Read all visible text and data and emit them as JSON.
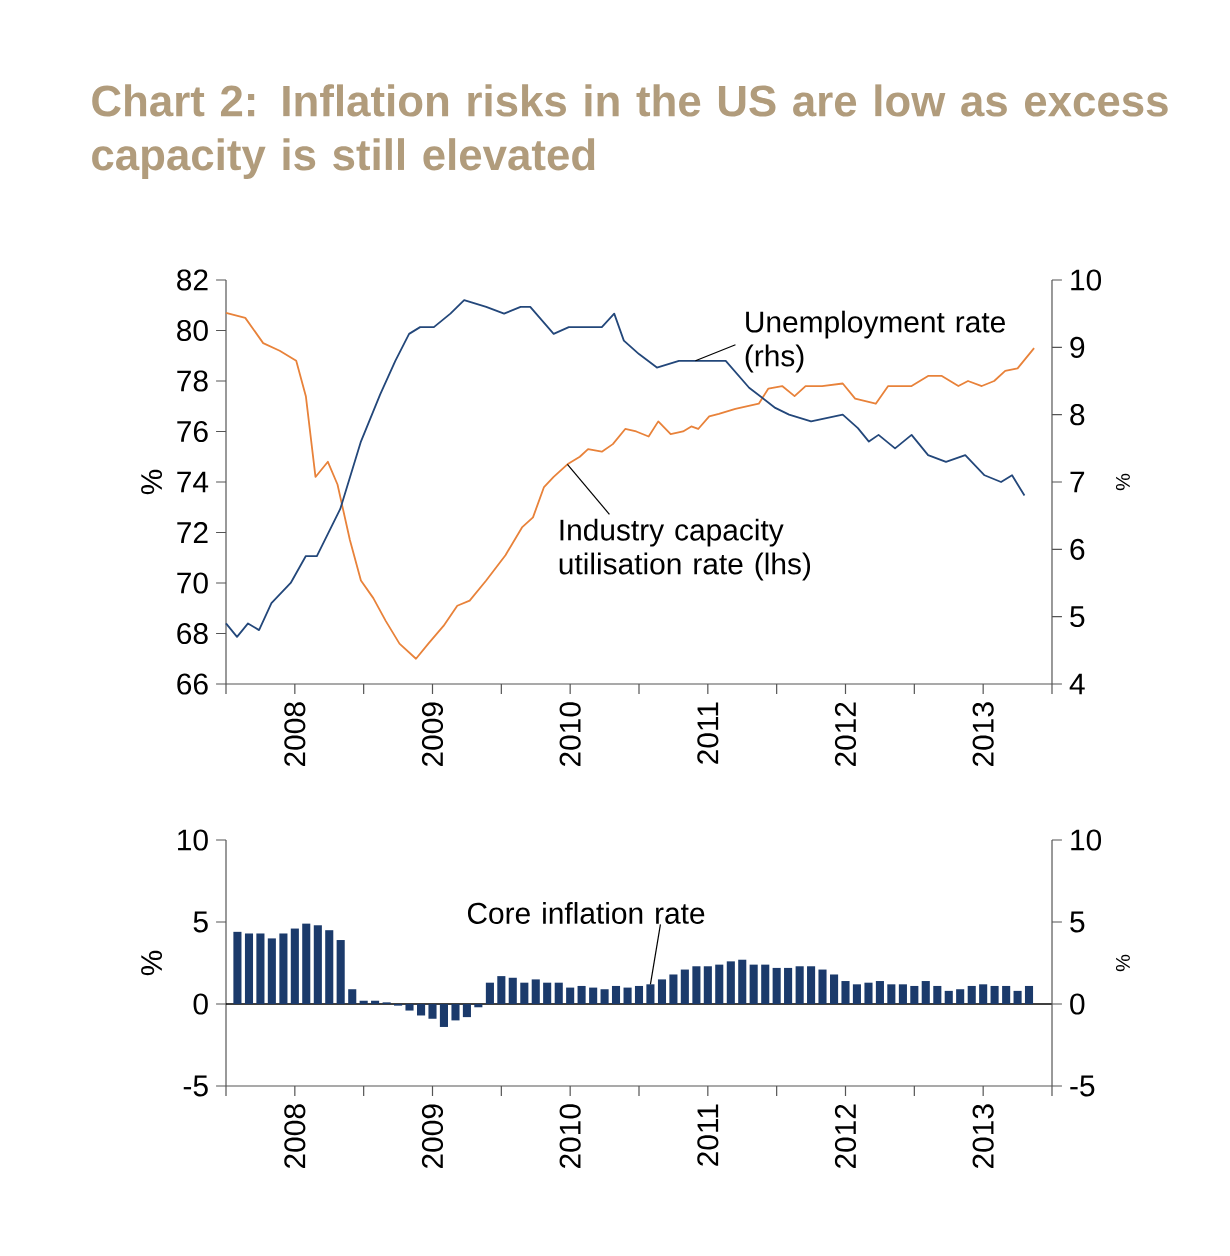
{
  "chart_data": [
    {
      "type": "line",
      "title": "Chart 2: Inflation risks in the US are low as excess capacity is still elevated",
      "ylabel": "%",
      "y2label": "%",
      "xlim": [
        2008,
        2014
      ],
      "xticks": [
        {
          "value": 2008,
          "label": null
        },
        {
          "value": 2008.5,
          "label": "2008"
        },
        {
          "value": 2009,
          "label": null
        },
        {
          "value": 2009.5,
          "label": "2009"
        },
        {
          "value": 2010,
          "label": null
        },
        {
          "value": 2010.5,
          "label": "2010"
        },
        {
          "value": 2011,
          "label": null
        },
        {
          "value": 2011.5,
          "label": "2011"
        },
        {
          "value": 2012,
          "label": null
        },
        {
          "value": 2012.5,
          "label": "2012"
        },
        {
          "value": 2013,
          "label": null
        },
        {
          "value": 2013.5,
          "label": "2013"
        },
        {
          "value": 2014,
          "label": null
        }
      ],
      "ylim": [
        66,
        82
      ],
      "yticks": [
        66,
        68,
        70,
        72,
        74,
        76,
        78,
        80,
        82
      ],
      "y2lim": [
        4,
        10
      ],
      "y2ticks": [
        4,
        5,
        6,
        7,
        8,
        9,
        10
      ],
      "series": [
        {
          "name": "Industry capacity utilisation rate (lhs)",
          "color": "#e8823a",
          "x": [
            2008.0,
            2008.14,
            2008.27,
            2008.39,
            2008.51,
            2008.58,
            2008.65,
            2008.74,
            2008.81,
            2008.9,
            2008.98,
            2009.07,
            2009.16,
            2009.26,
            2009.38,
            2009.47,
            2009.58,
            2009.68,
            2009.77,
            2009.89,
            2010.03,
            2010.15,
            2010.23,
            2010.31,
            2010.38,
            2010.48,
            2010.57,
            2010.63,
            2010.73,
            2010.81,
            2010.9,
            2010.98,
            2011.07,
            2011.14,
            2011.23,
            2011.32,
            2011.38,
            2011.43,
            2011.51,
            2011.58,
            2011.7,
            2011.87,
            2011.94,
            2012.04,
            2012.13,
            2012.21,
            2012.33,
            2012.48,
            2012.57,
            2012.72,
            2012.81,
            2012.98,
            2013.1,
            2013.2,
            2013.32,
            2013.39,
            2013.49,
            2013.58,
            2013.66,
            2013.75,
            2013.87
          ],
          "values": [
            80.7,
            80.5,
            79.5,
            79.2,
            78.8,
            77.4,
            74.2,
            74.8,
            73.9,
            71.7,
            70.1,
            69.4,
            68.5,
            67.6,
            67.0,
            67.6,
            68.3,
            69.1,
            69.3,
            70.1,
            71.1,
            72.2,
            72.6,
            73.8,
            74.2,
            74.7,
            75.0,
            75.3,
            75.2,
            75.5,
            76.1,
            76.0,
            75.8,
            76.4,
            75.9,
            76.0,
            76.2,
            76.1,
            76.6,
            76.7,
            76.9,
            77.1,
            77.7,
            77.8,
            77.4,
            77.8,
            77.8,
            77.9,
            77.3,
            77.1,
            77.8,
            77.8,
            78.2,
            78.2,
            77.8,
            78.0,
            77.8,
            78.0,
            78.4,
            78.5,
            79.3
          ]
        },
        {
          "name": "Unemployment rate (rhs)",
          "color": "#23477a",
          "axis": "y2",
          "x": [
            2008.0,
            2008.08,
            2008.16,
            2008.24,
            2008.33,
            2008.47,
            2008.58,
            2008.66,
            2008.83,
            2008.98,
            2009.12,
            2009.23,
            2009.33,
            2009.41,
            2009.51,
            2009.63,
            2009.73,
            2009.89,
            2010.02,
            2010.14,
            2010.21,
            2010.38,
            2010.49,
            2010.73,
            2010.82,
            2010.89,
            2011.0,
            2011.13,
            2011.29,
            2011.41,
            2011.53,
            2011.63,
            2011.8,
            2011.99,
            2012.09,
            2012.25,
            2012.48,
            2012.59,
            2012.67,
            2012.74,
            2012.86,
            2012.98,
            2013.1,
            2013.23,
            2013.37,
            2013.51,
            2013.63,
            2013.71,
            2013.8
          ],
          "values": [
            4.9,
            4.7,
            4.9,
            4.8,
            5.2,
            5.5,
            5.9,
            5.9,
            6.6,
            7.6,
            8.3,
            8.8,
            9.2,
            9.3,
            9.3,
            9.5,
            9.7,
            9.6,
            9.5,
            9.6,
            9.6,
            9.2,
            9.3,
            9.3,
            9.5,
            9.1,
            8.9,
            8.7,
            8.8,
            8.8,
            8.8,
            8.8,
            8.4,
            8.1,
            8.0,
            7.9,
            8.0,
            7.8,
            7.6,
            7.7,
            7.5,
            7.7,
            7.4,
            7.3,
            7.4,
            7.1,
            7.0,
            7.1,
            6.8
          ]
        }
      ]
    },
    {
      "type": "bar",
      "ylabel": "%",
      "y2label": "%",
      "xlim": [
        2008,
        2014
      ],
      "xticks": [
        {
          "value": 2008,
          "label": null
        },
        {
          "value": 2008.5,
          "label": "2008"
        },
        {
          "value": 2009,
          "label": null
        },
        {
          "value": 2009.5,
          "label": "2009"
        },
        {
          "value": 2010,
          "label": null
        },
        {
          "value": 2010.5,
          "label": "2010"
        },
        {
          "value": 2011,
          "label": null
        },
        {
          "value": 2011.5,
          "label": "2011"
        },
        {
          "value": 2012,
          "label": null
        },
        {
          "value": 2012.5,
          "label": "2012"
        },
        {
          "value": 2013,
          "label": null
        },
        {
          "value": 2013.5,
          "label": "2013"
        },
        {
          "value": 2014,
          "label": null
        }
      ],
      "ylim": [
        -5,
        10
      ],
      "yticks": [
        -5,
        0,
        5,
        10
      ],
      "y2lim": [
        -5,
        10
      ],
      "y2ticks": [
        -5,
        0,
        5,
        10
      ],
      "x": [
        2008.083,
        2008.167,
        2008.25,
        2008.333,
        2008.417,
        2008.5,
        2008.583,
        2008.667,
        2008.75,
        2008.833,
        2008.917,
        2009.0,
        2009.083,
        2009.167,
        2009.25,
        2009.333,
        2009.417,
        2009.5,
        2009.583,
        2009.667,
        2009.75,
        2009.833,
        2009.917,
        2010.0,
        2010.083,
        2010.167,
        2010.25,
        2010.333,
        2010.417,
        2010.5,
        2010.583,
        2010.667,
        2010.75,
        2010.833,
        2010.917,
        2011.0,
        2011.083,
        2011.167,
        2011.25,
        2011.333,
        2011.417,
        2011.5,
        2011.583,
        2011.667,
        2011.75,
        2011.833,
        2011.917,
        2012.0,
        2012.083,
        2012.167,
        2012.25,
        2012.333,
        2012.417,
        2012.5,
        2012.583,
        2012.667,
        2012.75,
        2012.833,
        2012.917,
        2013.0,
        2013.083,
        2013.167,
        2013.25,
        2013.333,
        2013.417,
        2013.5,
        2013.583,
        2013.667,
        2013.75,
        2013.833
      ],
      "series": [
        {
          "name": "Core inflation rate",
          "color": "#1b3a6b",
          "values": [
            4.4,
            4.3,
            4.3,
            4.0,
            4.3,
            4.6,
            4.9,
            4.8,
            4.5,
            3.9,
            0.9,
            0.2,
            0.2,
            0.1,
            -0.1,
            -0.4,
            -0.7,
            -0.9,
            -1.4,
            -1.0,
            -0.8,
            -0.2,
            1.3,
            1.7,
            1.6,
            1.3,
            1.5,
            1.3,
            1.3,
            1.0,
            1.1,
            1.0,
            0.9,
            1.1,
            1.0,
            1.1,
            1.2,
            1.5,
            1.8,
            2.1,
            2.3,
            2.3,
            2.4,
            2.6,
            2.7,
            2.4,
            2.4,
            2.2,
            2.2,
            2.3,
            2.3,
            2.1,
            1.8,
            1.4,
            1.2,
            1.3,
            1.4,
            1.2,
            1.2,
            1.1,
            1.4,
            1.1,
            0.8,
            0.9,
            1.1,
            1.2,
            1.1,
            1.1,
            0.8,
            1.1
          ]
        }
      ]
    }
  ]
}
